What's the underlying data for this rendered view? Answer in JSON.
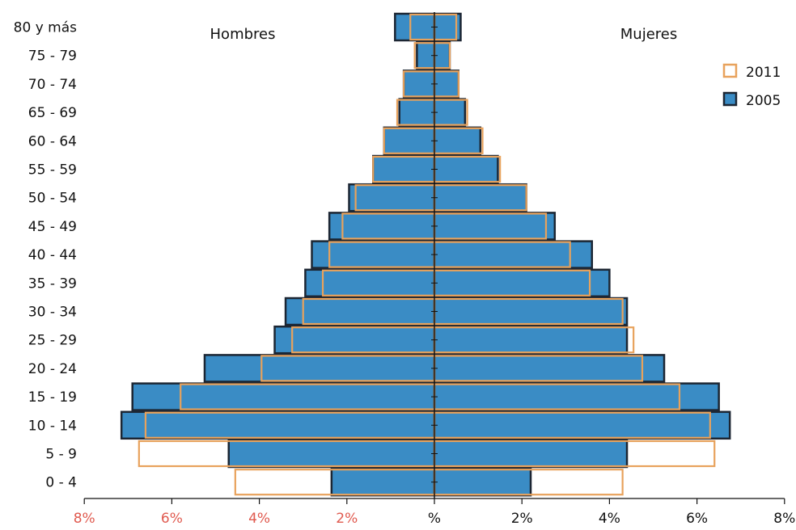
{
  "chart_data": {
    "type": "bar",
    "orientation": "horizontal",
    "variant": "population-pyramid",
    "title": "",
    "left_label": "Hombres",
    "right_label": "Mujeres",
    "categories": [
      "80 y más",
      "75 - 79",
      "70 - 74",
      "65 - 69",
      "60 - 64",
      "55 - 59",
      "50 - 54",
      "45 - 49",
      "40 - 44",
      "35 - 39",
      "30 - 34",
      "25 - 29",
      "20 - 24",
      "15 - 19",
      "10 - 14",
      "5 - 9",
      "0 - 4"
    ],
    "xlim": [
      -8,
      8
    ],
    "x_ticks": [
      "8%",
      "6%",
      "4%",
      "2%",
      "%",
      "2%",
      "4%",
      "6%",
      "8%"
    ],
    "x_tick_values": [
      -8,
      -6,
      -4,
      -2,
      0,
      2,
      4,
      6,
      8
    ],
    "series": [
      {
        "name": "2005",
        "style": "filled",
        "fill": "#3a8cc5",
        "stroke": "#1c2633",
        "hombres": [
          0.9,
          0.4,
          0.7,
          0.8,
          1.15,
          1.4,
          1.95,
          2.4,
          2.8,
          2.95,
          3.4,
          3.65,
          5.25,
          6.9,
          7.15,
          4.7,
          2.35
        ],
        "mujeres": [
          0.6,
          0.35,
          0.55,
          0.7,
          1.05,
          1.45,
          2.1,
          2.75,
          3.6,
          4.0,
          4.4,
          4.4,
          5.25,
          6.5,
          6.75,
          4.4,
          2.2
        ]
      },
      {
        "name": "2011",
        "style": "outline",
        "stroke": "#e8a25c",
        "hombres": [
          0.55,
          0.45,
          0.7,
          0.85,
          1.15,
          1.4,
          1.8,
          2.1,
          2.4,
          2.55,
          3.0,
          3.25,
          3.95,
          5.8,
          6.6,
          6.75,
          4.55
        ],
        "mujeres": [
          0.5,
          0.35,
          0.55,
          0.75,
          1.1,
          1.5,
          2.1,
          2.55,
          3.1,
          3.55,
          4.3,
          4.55,
          4.75,
          5.6,
          6.3,
          6.4,
          4.3
        ]
      }
    ],
    "legend": {
      "position": "top-right",
      "entries": [
        "2011",
        "2005"
      ]
    },
    "grid": false,
    "colors": {
      "left_tick_color": "#e05a4f",
      "right_tick_color": "#111111",
      "axis": "#111111"
    }
  }
}
